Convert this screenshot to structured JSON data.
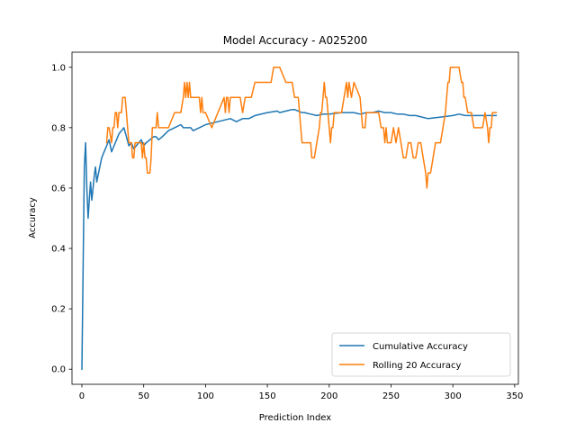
{
  "chart_data": {
    "type": "line",
    "title": "Model Accuracy - A025200",
    "xlabel": "Prediction Index",
    "ylabel": "Accuracy",
    "xlim": [
      -8,
      353
    ],
    "ylim": [
      -0.05,
      1.05
    ],
    "xticks": [
      0,
      50,
      100,
      150,
      200,
      250,
      300,
      350
    ],
    "yticks": [
      0.0,
      0.2,
      0.4,
      0.6,
      0.8,
      1.0
    ],
    "xtick_labels": [
      "0",
      "50",
      "100",
      "150",
      "200",
      "250",
      "300",
      "350"
    ],
    "ytick_labels": [
      "0.0",
      "0.2",
      "0.4",
      "0.6",
      "0.8",
      "1.0"
    ],
    "grid": false,
    "legend_position": "lower-right",
    "series": [
      {
        "name": "Cumulative Accuracy",
        "color": "#1f77b4",
        "x": [
          0,
          2,
          3,
          4,
          5,
          6,
          7,
          8,
          9,
          10,
          11,
          12,
          14,
          16,
          18,
          20,
          22,
          24,
          26,
          28,
          30,
          32,
          34,
          36,
          38,
          40,
          42,
          44,
          46,
          48,
          50,
          52,
          55,
          58,
          60,
          62,
          65,
          70,
          75,
          80,
          82,
          85,
          88,
          90,
          95,
          100,
          110,
          120,
          125,
          130,
          135,
          140,
          150,
          158,
          160,
          165,
          170,
          172,
          175,
          178,
          180,
          185,
          190,
          195,
          200,
          210,
          220,
          225,
          230,
          235,
          240,
          245,
          250,
          255,
          260,
          265,
          270,
          275,
          280,
          290,
          300,
          305,
          310,
          315,
          320,
          325,
          330,
          335
        ],
        "y": [
          0.0,
          0.67,
          0.75,
          0.6,
          0.5,
          0.56,
          0.62,
          0.56,
          0.6,
          0.64,
          0.67,
          0.62,
          0.66,
          0.7,
          0.72,
          0.74,
          0.76,
          0.72,
          0.74,
          0.76,
          0.78,
          0.79,
          0.8,
          0.77,
          0.74,
          0.75,
          0.73,
          0.74,
          0.75,
          0.76,
          0.74,
          0.75,
          0.76,
          0.77,
          0.77,
          0.76,
          0.77,
          0.79,
          0.8,
          0.81,
          0.8,
          0.8,
          0.8,
          0.79,
          0.8,
          0.81,
          0.82,
          0.83,
          0.82,
          0.83,
          0.83,
          0.84,
          0.85,
          0.855,
          0.85,
          0.855,
          0.86,
          0.86,
          0.855,
          0.85,
          0.85,
          0.845,
          0.84,
          0.845,
          0.845,
          0.85,
          0.85,
          0.845,
          0.85,
          0.85,
          0.855,
          0.85,
          0.85,
          0.845,
          0.845,
          0.84,
          0.84,
          0.835,
          0.83,
          0.835,
          0.84,
          0.845,
          0.84,
          0.84,
          0.84,
          0.84,
          0.84,
          0.84
        ]
      },
      {
        "name": "Rolling 20 Accuracy",
        "color": "#ff7f0e",
        "x": [
          20,
          21,
          22,
          24,
          25,
          26,
          27,
          28,
          29,
          30,
          31,
          32,
          33,
          34,
          35,
          36,
          37,
          38,
          39,
          40,
          41,
          42,
          43,
          44,
          45,
          46,
          47,
          48,
          49,
          50,
          51,
          52,
          53,
          55,
          56,
          57,
          60,
          61,
          62,
          65,
          68,
          70,
          75,
          77,
          80,
          82,
          83,
          84,
          85,
          86,
          87,
          88,
          90,
          95,
          96,
          97,
          98,
          100,
          105,
          110,
          115,
          116,
          117,
          118,
          119,
          120,
          122,
          125,
          128,
          130,
          132,
          135,
          137,
          140,
          145,
          150,
          152,
          153,
          155,
          156,
          160,
          165,
          170,
          172,
          174,
          175,
          176,
          177,
          178,
          180,
          183,
          185,
          186,
          188,
          190,
          192,
          193,
          194,
          195,
          196,
          197,
          198,
          200,
          201,
          202,
          203,
          204,
          205,
          206,
          208,
          210,
          212,
          214,
          215,
          216,
          218,
          220,
          225,
          226,
          227,
          228,
          229,
          230,
          235,
          238,
          240,
          242,
          244,
          245,
          246,
          247,
          248,
          250,
          252,
          254,
          256,
          258,
          260,
          262,
          264,
          266,
          268,
          270,
          272,
          274,
          276,
          278,
          279,
          280,
          282,
          284,
          286,
          288,
          290,
          292,
          294,
          295,
          296,
          297,
          298,
          299,
          300,
          305,
          307,
          308,
          309,
          310,
          312,
          313,
          314,
          315,
          317,
          318,
          320,
          322,
          324,
          326,
          328,
          329,
          330,
          331,
          332,
          333,
          335
        ],
        "y": [
          0.75,
          0.8,
          0.8,
          0.75,
          0.8,
          0.8,
          0.85,
          0.85,
          0.8,
          0.85,
          0.85,
          0.85,
          0.9,
          0.9,
          0.9,
          0.85,
          0.8,
          0.75,
          0.75,
          0.75,
          0.7,
          0.7,
          0.75,
          0.75,
          0.75,
          0.75,
          0.75,
          0.75,
          0.7,
          0.75,
          0.7,
          0.7,
          0.65,
          0.65,
          0.7,
          0.8,
          0.8,
          0.85,
          0.8,
          0.8,
          0.8,
          0.8,
          0.85,
          0.85,
          0.85,
          0.9,
          0.95,
          0.9,
          0.95,
          0.9,
          0.95,
          0.9,
          0.9,
          0.9,
          0.85,
          0.9,
          0.85,
          0.85,
          0.8,
          0.85,
          0.9,
          0.85,
          0.9,
          0.9,
          0.85,
          0.9,
          0.9,
          0.9,
          0.9,
          0.85,
          0.9,
          0.9,
          0.9,
          0.95,
          0.95,
          0.95,
          0.95,
          0.95,
          1.0,
          1.0,
          1.0,
          0.95,
          0.95,
          0.9,
          0.9,
          0.9,
          0.85,
          0.8,
          0.75,
          0.75,
          0.75,
          0.75,
          0.7,
          0.7,
          0.75,
          0.8,
          0.85,
          0.85,
          0.9,
          0.95,
          0.9,
          0.9,
          0.8,
          0.75,
          0.8,
          0.8,
          0.85,
          0.85,
          0.85,
          0.85,
          0.85,
          0.9,
          0.95,
          0.9,
          0.95,
          0.9,
          0.95,
          0.9,
          0.85,
          0.8,
          0.8,
          0.8,
          0.85,
          0.85,
          0.85,
          0.85,
          0.8,
          0.8,
          0.75,
          0.8,
          0.75,
          0.75,
          0.75,
          0.8,
          0.75,
          0.8,
          0.75,
          0.7,
          0.7,
          0.75,
          0.75,
          0.7,
          0.7,
          0.75,
          0.75,
          0.7,
          0.65,
          0.6,
          0.65,
          0.65,
          0.7,
          0.75,
          0.75,
          0.75,
          0.8,
          0.85,
          0.9,
          0.95,
          0.95,
          1.0,
          1.0,
          1.0,
          1.0,
          0.95,
          0.95,
          0.9,
          0.9,
          0.85,
          0.85,
          0.85,
          0.85,
          0.8,
          0.8,
          0.8,
          0.8,
          0.8,
          0.85,
          0.8,
          0.75,
          0.8,
          0.8,
          0.85,
          0.85,
          0.85
        ]
      }
    ]
  }
}
